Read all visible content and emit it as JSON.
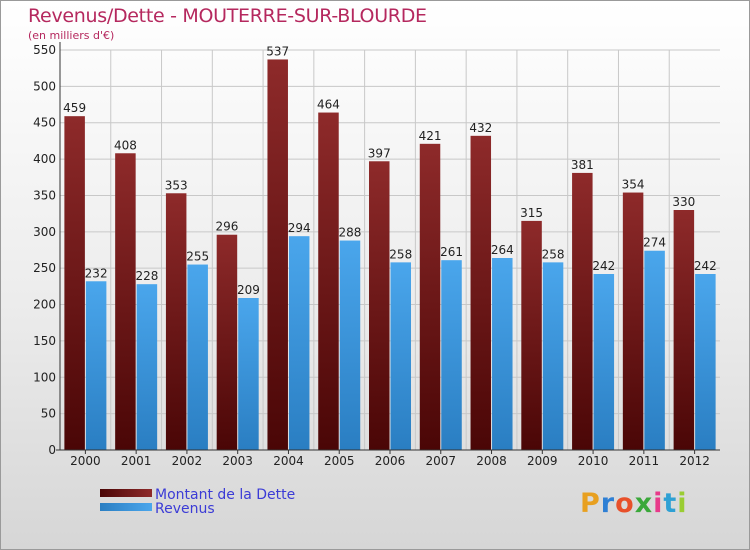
{
  "header": {
    "title": "Revenus/Dette - MOUTERRE-SUR-BLOURDE",
    "unit": "(en milliers d'€)"
  },
  "logo": {
    "letters": [
      "P",
      "r",
      "o",
      "x",
      "i",
      "t",
      "i"
    ],
    "colors": [
      "#e8a020",
      "#2e7fd4",
      "#e8502a",
      "#3aa83a",
      "#e83a8a",
      "#2ea0d4",
      "#9acd32"
    ]
  },
  "chart_data": {
    "type": "bar",
    "title": "Revenus/Dette - MOUTERRE-SUR-BLOURDE",
    "ylabel": "(en milliers d'€)",
    "xlabel": "",
    "categories": [
      "2000",
      "2001",
      "2002",
      "2003",
      "2004",
      "2005",
      "2006",
      "2007",
      "2008",
      "2009",
      "2010",
      "2011",
      "2012"
    ],
    "ylim": [
      0,
      550
    ],
    "yticks": [
      0,
      50,
      100,
      150,
      200,
      250,
      300,
      350,
      400,
      450,
      500,
      550
    ],
    "grid": true,
    "legend_position": "bottom-left",
    "series": [
      {
        "name": "Montant de la Dette",
        "color": "#7a1c1c",
        "values": [
          459,
          408,
          353,
          296,
          537,
          464,
          397,
          421,
          432,
          315,
          381,
          354,
          330
        ]
      },
      {
        "name": "Revenus",
        "color": "#3d95dc",
        "values": [
          232,
          228,
          255,
          209,
          294,
          288,
          258,
          261,
          264,
          258,
          242,
          274,
          242
        ]
      }
    ]
  }
}
